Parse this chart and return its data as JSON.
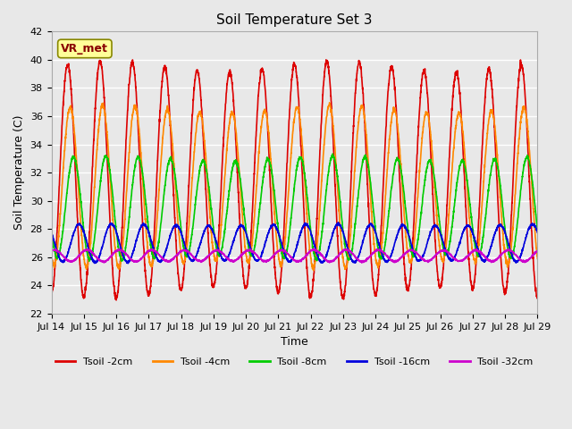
{
  "title": "Soil Temperature Set 3",
  "xlabel": "Time",
  "ylabel": "Soil Temperature (C)",
  "ylim": [
    22,
    42
  ],
  "yticks": [
    22,
    24,
    26,
    28,
    30,
    32,
    34,
    36,
    38,
    40,
    42
  ],
  "xlim": [
    0,
    15
  ],
  "xtick_labels": [
    "Jul 14",
    "Jul 15",
    "Jul 16",
    "Jul 17",
    "Jul 18",
    "Jul 19",
    "Jul 20",
    "Jul 21",
    "Jul 22",
    "Jul 23",
    "Jul 24",
    "Jul 25",
    "Jul 26",
    "Jul 27",
    "Jul 28",
    "Jul 29"
  ],
  "series_names": [
    "Tsoil -2cm",
    "Tsoil -4cm",
    "Tsoil -8cm",
    "Tsoil -16cm",
    "Tsoil -32cm"
  ],
  "colors": [
    "#dd0000",
    "#ff8800",
    "#00cc00",
    "#0000dd",
    "#cc00cc"
  ],
  "lws": [
    1.2,
    1.2,
    1.2,
    1.2,
    1.2
  ],
  "background_color": "#e8e8e8",
  "plot_bg_color": "#e8e8e8",
  "grid_color": "#ffffff",
  "annotation_text": "VR_met",
  "annotation_bg": "#ffff99",
  "annotation_border": "#888800",
  "annotation_textcolor": "#880000",
  "n_points": 3000,
  "duration_days": 15,
  "amplitudes": [
    8.0,
    5.5,
    3.5,
    1.3,
    0.4
  ],
  "means": [
    31.5,
    31.0,
    29.5,
    27.0,
    26.1
  ],
  "phase_shifts": [
    0.0,
    0.08,
    0.18,
    0.35,
    0.6
  ],
  "period_days": 1.0
}
